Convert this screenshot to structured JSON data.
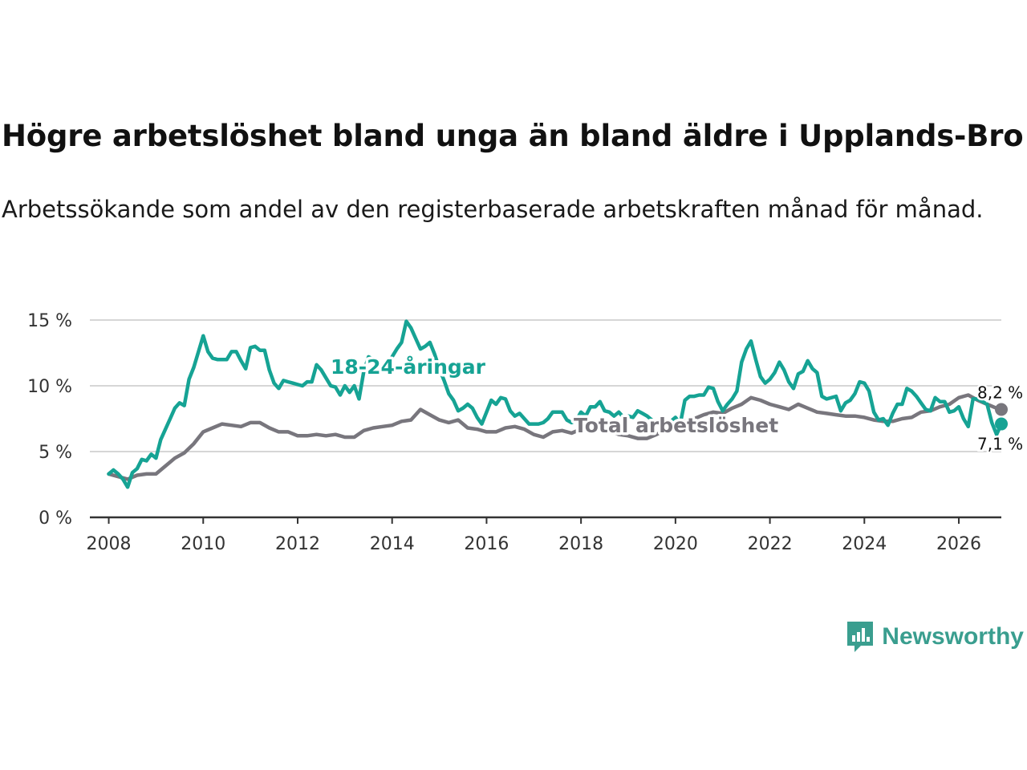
{
  "title": "Högre arbetslöshet bland unga än bland äldre i Upplands-Bro",
  "subtitle": "Arbetssökande som andel av den registerbaserade arbetskraften månad för månad.",
  "brand": {
    "name": "Newsworthy",
    "icon": "newsworthy-logo-icon",
    "color": "#3a9e8f"
  },
  "chart_data": {
    "type": "line",
    "title": "Högre arbetslöshet bland unga än bland äldre i Upplands-Bro",
    "xlabel": "",
    "ylabel": "",
    "xlim": [
      2007.6,
      2026.9
    ],
    "ylim": [
      0,
      15
    ],
    "x_ticks": [
      2008,
      2010,
      2012,
      2014,
      2016,
      2018,
      2020,
      2022,
      2024,
      2026
    ],
    "x_tick_labels": [
      "2008",
      "2010",
      "2012",
      "2014",
      "2016",
      "2018",
      "2020",
      "2022",
      "2024",
      "2026"
    ],
    "y_ticks": [
      0,
      5,
      10,
      15
    ],
    "y_tick_labels": [
      "0 %",
      "5 %",
      "10 %",
      "15 %"
    ],
    "grid": true,
    "legend": "inline labels",
    "series": [
      {
        "name": "18-24-åringar",
        "label": "18-24-åringar",
        "color": "#16a394",
        "end_label": "7,1 %",
        "points": [
          [
            2008.0,
            3.3
          ],
          [
            2008.1,
            3.6
          ],
          [
            2008.2,
            3.3
          ],
          [
            2008.3,
            2.9
          ],
          [
            2008.4,
            2.3
          ],
          [
            2008.5,
            3.4
          ],
          [
            2008.6,
            3.7
          ],
          [
            2008.7,
            4.4
          ],
          [
            2008.8,
            4.3
          ],
          [
            2008.9,
            4.8
          ],
          [
            2009.0,
            4.5
          ],
          [
            2009.1,
            5.9
          ],
          [
            2009.2,
            6.7
          ],
          [
            2009.3,
            7.5
          ],
          [
            2009.4,
            8.3
          ],
          [
            2009.5,
            8.7
          ],
          [
            2009.6,
            8.5
          ],
          [
            2009.7,
            10.5
          ],
          [
            2009.8,
            11.4
          ],
          [
            2009.9,
            12.6
          ],
          [
            2010.0,
            13.8
          ],
          [
            2010.1,
            12.6
          ],
          [
            2010.2,
            12.1
          ],
          [
            2010.3,
            12.0
          ],
          [
            2010.4,
            12.0
          ],
          [
            2010.5,
            12.0
          ],
          [
            2010.6,
            12.6
          ],
          [
            2010.7,
            12.6
          ],
          [
            2010.8,
            11.9
          ],
          [
            2010.9,
            11.3
          ],
          [
            2011.0,
            12.9
          ],
          [
            2011.1,
            13.0
          ],
          [
            2011.2,
            12.7
          ],
          [
            2011.3,
            12.7
          ],
          [
            2011.4,
            11.2
          ],
          [
            2011.5,
            10.2
          ],
          [
            2011.6,
            9.8
          ],
          [
            2011.7,
            10.4
          ],
          [
            2011.8,
            10.3
          ],
          [
            2011.9,
            10.2
          ],
          [
            2012.0,
            10.1
          ],
          [
            2012.1,
            10.0
          ],
          [
            2012.2,
            10.3
          ],
          [
            2012.3,
            10.3
          ],
          [
            2012.4,
            11.6
          ],
          [
            2012.5,
            11.2
          ],
          [
            2012.6,
            10.6
          ],
          [
            2012.7,
            10.0
          ],
          [
            2012.8,
            9.9
          ],
          [
            2012.9,
            9.3
          ],
          [
            2013.0,
            10.0
          ],
          [
            2013.1,
            9.5
          ],
          [
            2013.2,
            10.0
          ],
          [
            2013.3,
            9.0
          ],
          [
            2013.4,
            11.1
          ],
          [
            2013.5,
            12.2
          ],
          [
            2013.6,
            12.0
          ],
          [
            2013.7,
            11.5
          ],
          [
            2013.8,
            11.3
          ],
          [
            2013.9,
            11.2
          ],
          [
            2014.0,
            12.2
          ],
          [
            2014.1,
            12.8
          ],
          [
            2014.2,
            13.3
          ],
          [
            2014.3,
            14.9
          ],
          [
            2014.4,
            14.4
          ],
          [
            2014.5,
            13.6
          ],
          [
            2014.6,
            12.8
          ],
          [
            2014.7,
            13.0
          ],
          [
            2014.8,
            13.3
          ],
          [
            2014.9,
            12.4
          ],
          [
            2015.0,
            11.3
          ],
          [
            2015.1,
            10.4
          ],
          [
            2015.2,
            9.4
          ],
          [
            2015.3,
            8.9
          ],
          [
            2015.4,
            8.1
          ],
          [
            2015.5,
            8.3
          ],
          [
            2015.6,
            8.6
          ],
          [
            2015.7,
            8.3
          ],
          [
            2015.8,
            7.6
          ],
          [
            2015.9,
            7.1
          ],
          [
            2016.0,
            8.0
          ],
          [
            2016.1,
            8.9
          ],
          [
            2016.2,
            8.6
          ],
          [
            2016.3,
            9.1
          ],
          [
            2016.4,
            9.0
          ],
          [
            2016.5,
            8.1
          ],
          [
            2016.6,
            7.7
          ],
          [
            2016.7,
            7.9
          ],
          [
            2016.8,
            7.5
          ],
          [
            2016.9,
            7.1
          ],
          [
            2017.0,
            7.1
          ],
          [
            2017.1,
            7.1
          ],
          [
            2017.2,
            7.2
          ],
          [
            2017.3,
            7.5
          ],
          [
            2017.4,
            8.0
          ],
          [
            2017.5,
            8.0
          ],
          [
            2017.6,
            8.0
          ],
          [
            2017.7,
            7.4
          ],
          [
            2017.8,
            7.2
          ],
          [
            2017.9,
            7.4
          ],
          [
            2018.0,
            8.0
          ],
          [
            2018.1,
            7.7
          ],
          [
            2018.2,
            8.4
          ],
          [
            2018.3,
            8.4
          ],
          [
            2018.4,
            8.8
          ],
          [
            2018.5,
            8.1
          ],
          [
            2018.6,
            8.0
          ],
          [
            2018.7,
            7.7
          ],
          [
            2018.8,
            8.0
          ],
          [
            2018.9,
            7.6
          ],
          [
            2019.0,
            7.7
          ],
          [
            2019.1,
            7.6
          ],
          [
            2019.2,
            8.1
          ],
          [
            2019.3,
            7.9
          ],
          [
            2019.4,
            7.7
          ],
          [
            2019.5,
            7.4
          ],
          [
            2019.6,
            7.2
          ],
          [
            2019.7,
            7.2
          ],
          [
            2019.8,
            7.0
          ],
          [
            2019.9,
            7.3
          ],
          [
            2020.0,
            7.6
          ],
          [
            2020.1,
            7.1
          ],
          [
            2020.2,
            8.9
          ],
          [
            2020.3,
            9.2
          ],
          [
            2020.4,
            9.2
          ],
          [
            2020.5,
            9.3
          ],
          [
            2020.6,
            9.3
          ],
          [
            2020.7,
            9.9
          ],
          [
            2020.8,
            9.8
          ],
          [
            2020.9,
            8.8
          ],
          [
            2021.0,
            8.1
          ],
          [
            2021.1,
            8.6
          ],
          [
            2021.2,
            9.0
          ],
          [
            2021.3,
            9.6
          ],
          [
            2021.4,
            11.8
          ],
          [
            2021.5,
            12.8
          ],
          [
            2021.6,
            13.4
          ],
          [
            2021.7,
            12.0
          ],
          [
            2021.8,
            10.7
          ],
          [
            2021.9,
            10.2
          ],
          [
            2022.0,
            10.5
          ],
          [
            2022.1,
            11.0
          ],
          [
            2022.2,
            11.8
          ],
          [
            2022.3,
            11.2
          ],
          [
            2022.4,
            10.3
          ],
          [
            2022.5,
            9.8
          ],
          [
            2022.6,
            10.9
          ],
          [
            2022.7,
            11.1
          ],
          [
            2022.8,
            11.9
          ],
          [
            2022.9,
            11.3
          ],
          [
            2023.0,
            11.0
          ],
          [
            2023.1,
            9.2
          ],
          [
            2023.2,
            9.0
          ],
          [
            2023.3,
            9.1
          ],
          [
            2023.4,
            9.2
          ],
          [
            2023.5,
            8.1
          ],
          [
            2023.6,
            8.7
          ],
          [
            2023.7,
            8.9
          ],
          [
            2023.8,
            9.4
          ],
          [
            2023.9,
            10.3
          ],
          [
            2024.0,
            10.2
          ],
          [
            2024.1,
            9.6
          ],
          [
            2024.2,
            8.0
          ],
          [
            2024.3,
            7.4
          ],
          [
            2024.4,
            7.5
          ],
          [
            2024.5,
            7.0
          ],
          [
            2024.6,
            7.9
          ],
          [
            2024.7,
            8.6
          ],
          [
            2024.8,
            8.6
          ],
          [
            2024.9,
            9.8
          ],
          [
            2025.0,
            9.6
          ],
          [
            2025.1,
            9.2
          ],
          [
            2025.2,
            8.7
          ],
          [
            2025.3,
            8.2
          ],
          [
            2025.4,
            8.1
          ],
          [
            2025.5,
            9.1
          ],
          [
            2025.6,
            8.8
          ],
          [
            2025.7,
            8.8
          ],
          [
            2025.8,
            8.0
          ],
          [
            2025.9,
            8.1
          ],
          [
            2026.0,
            8.4
          ],
          [
            2026.1,
            7.5
          ],
          [
            2026.2,
            6.9
          ],
          [
            2026.3,
            9.0
          ],
          [
            2026.4,
            9.0
          ],
          [
            2026.5,
            8.8
          ],
          [
            2026.6,
            8.6
          ],
          [
            2026.7,
            7.2
          ],
          [
            2026.8,
            6.3
          ],
          [
            2026.9,
            7.1
          ]
        ]
      },
      {
        "name": "Total arbetslöshet",
        "label": "Total arbetslöshet",
        "color": "#78767d",
        "end_label": "8,2 %",
        "points": [
          [
            2008.0,
            3.3
          ],
          [
            2008.2,
            3.1
          ],
          [
            2008.4,
            2.9
          ],
          [
            2008.6,
            3.2
          ],
          [
            2008.8,
            3.3
          ],
          [
            2009.0,
            3.3
          ],
          [
            2009.2,
            3.9
          ],
          [
            2009.4,
            4.5
          ],
          [
            2009.6,
            4.9
          ],
          [
            2009.8,
            5.6
          ],
          [
            2010.0,
            6.5
          ],
          [
            2010.2,
            6.8
          ],
          [
            2010.4,
            7.1
          ],
          [
            2010.6,
            7.0
          ],
          [
            2010.8,
            6.9
          ],
          [
            2011.0,
            7.2
          ],
          [
            2011.2,
            7.2
          ],
          [
            2011.4,
            6.8
          ],
          [
            2011.6,
            6.5
          ],
          [
            2011.8,
            6.5
          ],
          [
            2012.0,
            6.2
          ],
          [
            2012.2,
            6.2
          ],
          [
            2012.4,
            6.3
          ],
          [
            2012.6,
            6.2
          ],
          [
            2012.8,
            6.3
          ],
          [
            2013.0,
            6.1
          ],
          [
            2013.2,
            6.1
          ],
          [
            2013.4,
            6.6
          ],
          [
            2013.6,
            6.8
          ],
          [
            2013.8,
            6.9
          ],
          [
            2014.0,
            7.0
          ],
          [
            2014.2,
            7.3
          ],
          [
            2014.4,
            7.4
          ],
          [
            2014.6,
            8.2
          ],
          [
            2014.8,
            7.8
          ],
          [
            2015.0,
            7.4
          ],
          [
            2015.2,
            7.2
          ],
          [
            2015.4,
            7.4
          ],
          [
            2015.6,
            6.8
          ],
          [
            2015.8,
            6.7
          ],
          [
            2016.0,
            6.5
          ],
          [
            2016.2,
            6.5
          ],
          [
            2016.4,
            6.8
          ],
          [
            2016.6,
            6.9
          ],
          [
            2016.8,
            6.7
          ],
          [
            2017.0,
            6.3
          ],
          [
            2017.2,
            6.1
          ],
          [
            2017.4,
            6.5
          ],
          [
            2017.6,
            6.6
          ],
          [
            2017.8,
            6.4
          ],
          [
            2018.0,
            6.7
          ],
          [
            2018.2,
            6.9
          ],
          [
            2018.4,
            6.8
          ],
          [
            2018.6,
            6.6
          ],
          [
            2018.8,
            6.3
          ],
          [
            2019.0,
            6.2
          ],
          [
            2019.2,
            6.0
          ],
          [
            2019.4,
            6.0
          ],
          [
            2019.6,
            6.3
          ],
          [
            2019.8,
            6.7
          ],
          [
            2020.0,
            7.0
          ],
          [
            2020.2,
            7.3
          ],
          [
            2020.4,
            7.5
          ],
          [
            2020.6,
            7.8
          ],
          [
            2020.8,
            8.0
          ],
          [
            2021.0,
            7.9
          ],
          [
            2021.2,
            8.3
          ],
          [
            2021.4,
            8.6
          ],
          [
            2021.6,
            9.1
          ],
          [
            2021.8,
            8.9
          ],
          [
            2022.0,
            8.6
          ],
          [
            2022.2,
            8.4
          ],
          [
            2022.4,
            8.2
          ],
          [
            2022.6,
            8.6
          ],
          [
            2022.8,
            8.3
          ],
          [
            2023.0,
            8.0
          ],
          [
            2023.2,
            7.9
          ],
          [
            2023.4,
            7.8
          ],
          [
            2023.6,
            7.7
          ],
          [
            2023.8,
            7.7
          ],
          [
            2024.0,
            7.6
          ],
          [
            2024.2,
            7.4
          ],
          [
            2024.4,
            7.3
          ],
          [
            2024.6,
            7.3
          ],
          [
            2024.8,
            7.5
          ],
          [
            2025.0,
            7.6
          ],
          [
            2025.2,
            8.0
          ],
          [
            2025.4,
            8.1
          ],
          [
            2025.6,
            8.4
          ],
          [
            2025.8,
            8.6
          ],
          [
            2026.0,
            9.1
          ],
          [
            2026.2,
            9.3
          ],
          [
            2026.4,
            8.9
          ],
          [
            2026.6,
            8.6
          ],
          [
            2026.8,
            8.3
          ],
          [
            2026.9,
            8.2
          ]
        ]
      }
    ]
  }
}
